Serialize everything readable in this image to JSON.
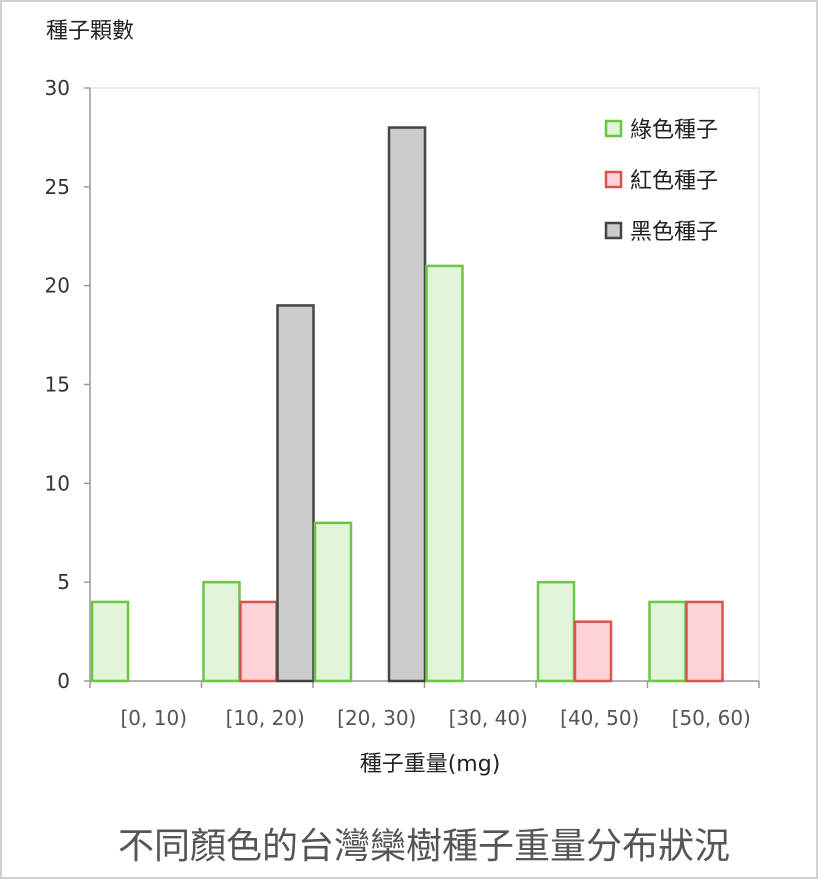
{
  "chart_data": {
    "type": "bar",
    "title": "不同顏色的台灣欒樹種子重量分布狀況",
    "ylabel": "種子顆數",
    "xlabel": "種子重量(mg)",
    "categories": [
      "[0, 10)",
      "[10, 20)",
      "[20, 30)",
      "[30, 40)",
      "[40, 50)",
      "[50, 60)"
    ],
    "ylim": [
      0,
      30
    ],
    "yticks": [
      0,
      5,
      10,
      15,
      20,
      25,
      30
    ],
    "grid": false,
    "legend_position": "top-right",
    "series": [
      {
        "name": "綠色種子",
        "values": [
          4,
          5,
          8,
          21,
          5,
          4
        ],
        "fill": "#e2f4da",
        "stroke": "#6cc644"
      },
      {
        "name": "紅色種子",
        "values": [
          0,
          4,
          0,
          0,
          3,
          4
        ],
        "fill": "#ffd4d8",
        "stroke": "#d9534f"
      },
      {
        "name": "黑色種子",
        "values": [
          0,
          19,
          28,
          0,
          0,
          0
        ],
        "fill": "#cccccc",
        "stroke": "#444444"
      }
    ],
    "bars": [
      {
        "category": "[0, 10)",
        "series": "綠色種子",
        "value": 4
      },
      {
        "category": "[10, 20)",
        "series": "綠色種子",
        "value": 5
      },
      {
        "category": "[10, 20)",
        "series": "紅色種子",
        "value": 4
      },
      {
        "category": "[10, 20)",
        "series": "黑色種子",
        "value": 19
      },
      {
        "category": "[20, 30)",
        "series": "綠色種子",
        "value": 8
      },
      {
        "category": "[20, 30)",
        "series": "黑色種子",
        "value": 28
      },
      {
        "category": "[30, 40)",
        "series": "綠色種子",
        "value": 21
      },
      {
        "category": "[40, 50)",
        "series": "綠色種子",
        "value": 5
      },
      {
        "category": "[40, 50)",
        "series": "紅色種子",
        "value": 3
      },
      {
        "category": "[50, 60)",
        "series": "綠色種子",
        "value": 4
      },
      {
        "category": "[50, 60)",
        "series": "紅色種子",
        "value": 4
      }
    ]
  }
}
